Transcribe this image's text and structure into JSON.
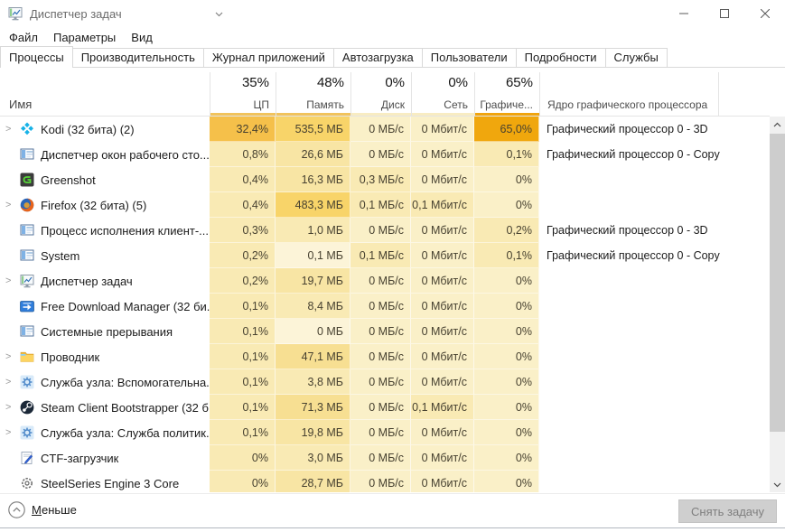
{
  "window": {
    "title": "Диспетчер задач"
  },
  "menu": [
    "Файл",
    "Параметры",
    "Вид"
  ],
  "tabs": [
    "Процессы",
    "Производительность",
    "Журнал приложений",
    "Автозагрузка",
    "Пользователи",
    "Подробности",
    "Службы"
  ],
  "active_tab": "Процессы",
  "header": {
    "name": "Имя",
    "cols": [
      {
        "pct": "35%",
        "label": "ЦП",
        "underline": "#F1C35C"
      },
      {
        "pct": "48%",
        "label": "Память",
        "underline": "#F1C35C"
      },
      {
        "pct": "0%",
        "label": "Диск",
        "underline": "#F8ECC2"
      },
      {
        "pct": "0%",
        "label": "Сеть",
        "underline": "#F8ECC2"
      },
      {
        "pct": "65%",
        "label": "Графиче...",
        "underline": "#F0A40E"
      },
      {
        "pct": "",
        "label": "Ядро графического процессора",
        "underline": ""
      }
    ]
  },
  "heat_colors": [
    "#FCF4D8",
    "#FAF0C8",
    "#F9EAB4",
    "#F8E5A4",
    "#F7DF92",
    "#F8D469",
    "#F5C04A",
    "#F0A70D"
  ],
  "rows": [
    {
      "name": "Kodi (32 бита) (2)",
      "icon": "kodi",
      "expand": true,
      "cpu": "32,4%",
      "mem": "535,5 МБ",
      "disk": "0 МБ/с",
      "net": "0 Мбит/с",
      "gpu": "65,0%",
      "engine": "Графический процессор 0 - 3D",
      "heat": [
        6,
        5,
        1,
        1,
        7
      ]
    },
    {
      "name": "Диспетчер окон рабочего сто...",
      "icon": "window",
      "expand": false,
      "cpu": "0,8%",
      "mem": "26,6 МБ",
      "disk": "0 МБ/с",
      "net": "0 Мбит/с",
      "gpu": "0,1%",
      "engine": "Графический процессор 0 - Copy",
      "heat": [
        2,
        3,
        1,
        1,
        2
      ]
    },
    {
      "name": "Greenshot",
      "icon": "greenshot",
      "expand": false,
      "cpu": "0,4%",
      "mem": "16,3 МБ",
      "disk": "0,3 МБ/с",
      "net": "0 Мбит/с",
      "gpu": "0%",
      "engine": "",
      "heat": [
        2,
        3,
        2,
        1,
        1
      ]
    },
    {
      "name": "Firefox (32 бита) (5)",
      "icon": "firefox",
      "expand": true,
      "cpu": "0,4%",
      "mem": "483,3 МБ",
      "disk": "0,1 МБ/с",
      "net": "0,1 Мбит/с",
      "gpu": "0%",
      "engine": "",
      "heat": [
        2,
        5,
        2,
        2,
        1
      ]
    },
    {
      "name": "Процесс исполнения клиент-...",
      "icon": "window",
      "expand": false,
      "cpu": "0,3%",
      "mem": "1,0 МБ",
      "disk": "0 МБ/с",
      "net": "0 Мбит/с",
      "gpu": "0,2%",
      "engine": "Графический процессор 0 - 3D",
      "heat": [
        2,
        2,
        1,
        1,
        2
      ]
    },
    {
      "name": "System",
      "icon": "window",
      "expand": false,
      "cpu": "0,2%",
      "mem": "0,1 МБ",
      "disk": "0,1 МБ/с",
      "net": "0 Мбит/с",
      "gpu": "0,1%",
      "engine": "Графический процессор 0 - Copy",
      "heat": [
        2,
        0,
        2,
        1,
        2
      ]
    },
    {
      "name": "Диспетчер задач",
      "icon": "taskmgr",
      "expand": true,
      "cpu": "0,2%",
      "mem": "19,7 МБ",
      "disk": "0 МБ/с",
      "net": "0 Мбит/с",
      "gpu": "0%",
      "engine": "",
      "heat": [
        2,
        3,
        1,
        1,
        1
      ]
    },
    {
      "name": "Free Download Manager (32 би...",
      "icon": "fdm",
      "expand": false,
      "cpu": "0,1%",
      "mem": "8,4 МБ",
      "disk": "0 МБ/с",
      "net": "0 Мбит/с",
      "gpu": "0%",
      "engine": "",
      "heat": [
        2,
        2,
        1,
        1,
        1
      ]
    },
    {
      "name": "Системные прерывания",
      "icon": "window",
      "expand": false,
      "cpu": "0,1%",
      "mem": "0 МБ",
      "disk": "0 МБ/с",
      "net": "0 Мбит/с",
      "gpu": "0%",
      "engine": "",
      "heat": [
        2,
        0,
        1,
        1,
        1
      ]
    },
    {
      "name": "Проводник",
      "icon": "folder",
      "expand": true,
      "cpu": "0,1%",
      "mem": "47,1 МБ",
      "disk": "0 МБ/с",
      "net": "0 Мбит/с",
      "gpu": "0%",
      "engine": "",
      "heat": [
        2,
        4,
        1,
        1,
        1
      ]
    },
    {
      "name": "Служба узла: Вспомогательна...",
      "icon": "gear",
      "expand": true,
      "cpu": "0,1%",
      "mem": "3,8 МБ",
      "disk": "0 МБ/с",
      "net": "0 Мбит/с",
      "gpu": "0%",
      "engine": "",
      "heat": [
        2,
        2,
        1,
        1,
        1
      ]
    },
    {
      "name": "Steam Client Bootstrapper (32 б...",
      "icon": "steam",
      "expand": true,
      "cpu": "0,1%",
      "mem": "71,3 МБ",
      "disk": "0 МБ/с",
      "net": "0,1 Мбит/с",
      "gpu": "0%",
      "engine": "",
      "heat": [
        2,
        4,
        1,
        2,
        1
      ]
    },
    {
      "name": "Служба узла: Служба политик...",
      "icon": "gear",
      "expand": true,
      "cpu": "0,1%",
      "mem": "19,8 МБ",
      "disk": "0 МБ/с",
      "net": "0 Мбит/с",
      "gpu": "0%",
      "engine": "",
      "heat": [
        2,
        3,
        1,
        1,
        1
      ]
    },
    {
      "name": "CTF-загрузчик",
      "icon": "ctf",
      "expand": false,
      "cpu": "0%",
      "mem": "3,0 МБ",
      "disk": "0 МБ/с",
      "net": "0 Мбит/с",
      "gpu": "0%",
      "engine": "",
      "heat": [
        2,
        2,
        1,
        1,
        1
      ]
    },
    {
      "name": "SteelSeries Engine 3 Core",
      "icon": "steelseries",
      "expand": false,
      "cpu": "0%",
      "mem": "28,7 МБ",
      "disk": "0 МБ/с",
      "net": "0 Мбит/с",
      "gpu": "0%",
      "engine": "",
      "heat": [
        2,
        3,
        1,
        1,
        1
      ]
    }
  ],
  "footer": {
    "less_accel": "М",
    "less_rest": "еньше",
    "end_task_pre": "Снять за",
    "end_task_accel": "д",
    "end_task_post": "ачу"
  }
}
